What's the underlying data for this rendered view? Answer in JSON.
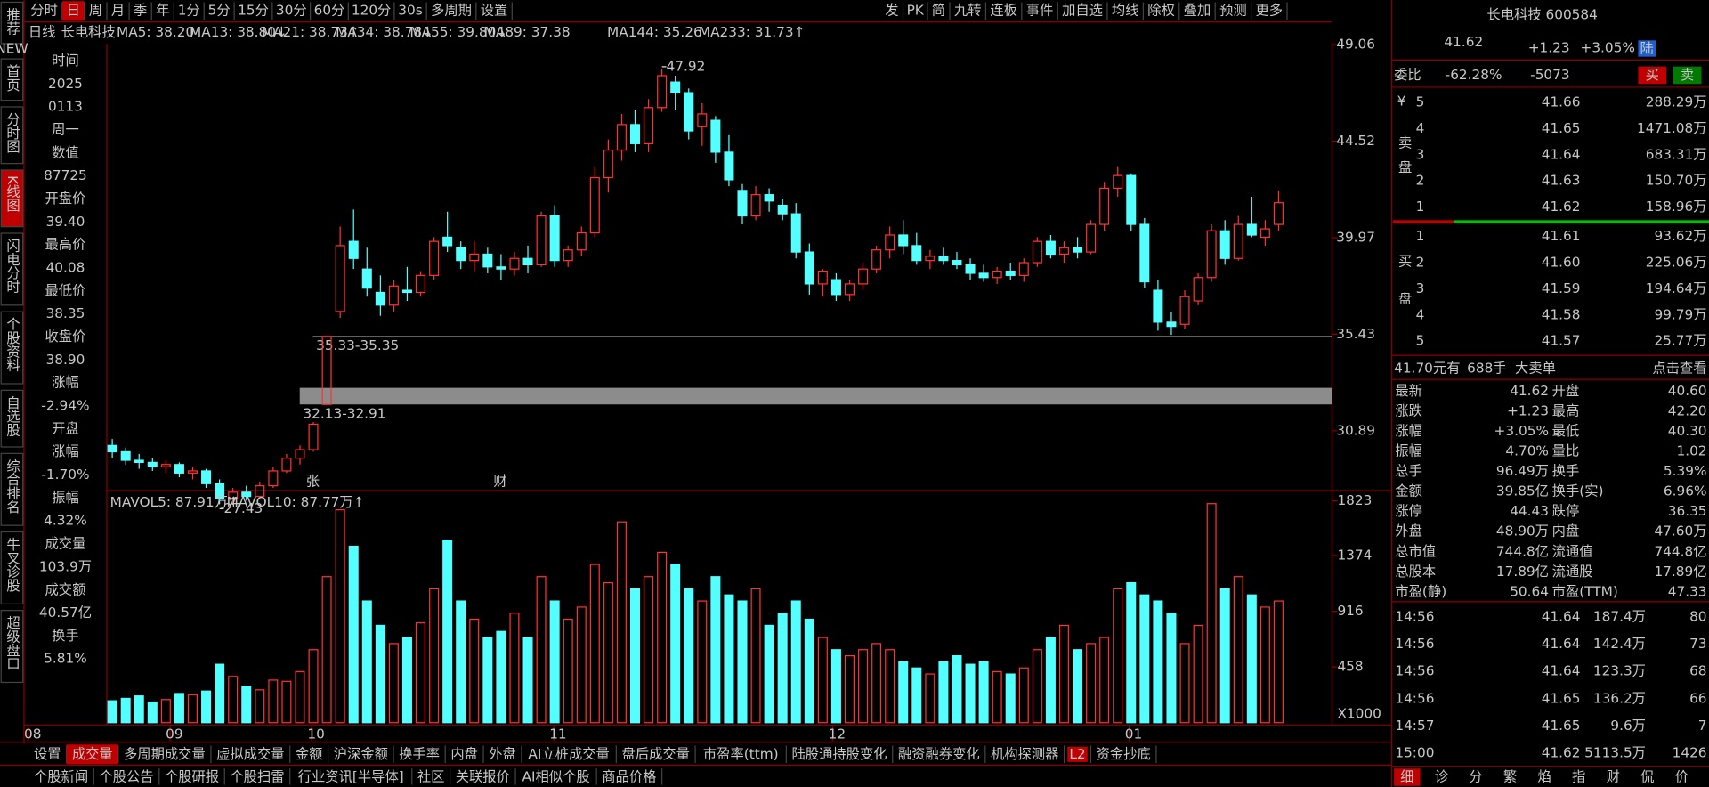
{
  "top_toolbar": [
    "分时",
    "日",
    "周",
    "月",
    "季",
    "年",
    "1分",
    "5分",
    "15分",
    "30分",
    "60分",
    "120分",
    "30s",
    "多周期",
    "设置"
  ],
  "top_toolbar_selected": "日",
  "top_right_toolbar": [
    "发",
    "PK",
    "简",
    "九转",
    "连板",
    "事件",
    "加自选",
    "均线",
    "除权",
    "叠加",
    "预测",
    "更多"
  ],
  "left_sidebar": [
    "推荐",
    "首页",
    "分时图",
    "K线图",
    "闪电分时",
    "个股资料",
    "自选股",
    "综合排名",
    "牛叉诊股",
    "超级盘口"
  ],
  "left_sidebar_selected": "K线图",
  "left_badge": "NEW",
  "chart_header": {
    "period": "日线",
    "name": "长电科技",
    "ma": [
      {
        "label": "MA5: 38.20",
        "color": "#ffffff"
      },
      {
        "label": "MA13: 38.80↓",
        "color": "#ffff00"
      },
      {
        "label": "MA21: 38.73↑",
        "color": "#ff80ff"
      },
      {
        "label": "MA34: 38.78↓",
        "color": "#00e600"
      },
      {
        "label": "MA55: 39.80↓",
        "color": "#33ccff"
      },
      {
        "label": "MA89: 37.38",
        "color": "#f0f0f0"
      },
      {
        "label": "MA144: 35.26",
        "color": "#3f9f9f"
      },
      {
        "label": "MA233: 31.73↑",
        "color": "#ff3b3b"
      }
    ]
  },
  "info_column": [
    {
      "text": "时间",
      "color": "#c8c8c8"
    },
    {
      "text": "2025",
      "color": "#e6e6e6"
    },
    {
      "text": "0113",
      "color": "#e6e6e6"
    },
    {
      "text": "周一",
      "color": "#e6e6e6"
    },
    {
      "text": "数值",
      "color": "#c8c8c8"
    },
    {
      "text": "87725",
      "color": "#ff3b3b"
    },
    {
      "text": "开盘价",
      "color": "#c8c8c8"
    },
    {
      "text": "39.40",
      "color": "#00e600"
    },
    {
      "text": "最高价",
      "color": "#c8c8c8"
    },
    {
      "text": "40.08",
      "color": "#e6e6e6"
    },
    {
      "text": "最低价",
      "color": "#c8c8c8"
    },
    {
      "text": "38.35",
      "color": "#00e600"
    },
    {
      "text": "收盘价",
      "color": "#c8c8c8"
    },
    {
      "text": "38.90",
      "color": "#00e600"
    },
    {
      "text": "涨幅",
      "color": "#c8c8c8"
    },
    {
      "text": "-2.94%",
      "color": "#00e600"
    },
    {
      "text": "开盘",
      "color": "#c8c8c8"
    },
    {
      "text": "涨幅",
      "color": "#c8c8c8"
    },
    {
      "text": "-1.70%",
      "color": "#00e600"
    },
    {
      "text": "振幅",
      "color": "#c8c8c8"
    },
    {
      "text": "4.32%",
      "color": "#33ccff"
    },
    {
      "text": "成交量",
      "color": "#c8c8c8"
    },
    {
      "text": "103.9万",
      "color": "#33ccff"
    },
    {
      "text": "成交额",
      "color": "#c8c8c8"
    },
    {
      "text": "40.57亿",
      "color": "#33ccff"
    },
    {
      "text": "换手",
      "color": "#c8c8c8"
    },
    {
      "text": "5.81%",
      "color": "#33ccff"
    }
  ],
  "chart_data": {
    "type": "candlestick",
    "candles": [
      [
        30.2,
        30.5,
        29.6,
        29.9
      ],
      [
        29.9,
        30.1,
        29.3,
        29.5
      ],
      [
        29.5,
        29.8,
        29.1,
        29.4
      ],
      [
        29.4,
        29.6,
        29.0,
        29.2
      ],
      [
        29.2,
        29.5,
        28.9,
        29.3
      ],
      [
        29.3,
        29.4,
        28.7,
        28.9
      ],
      [
        28.9,
        29.2,
        28.6,
        29.0
      ],
      [
        29.0,
        29.1,
        28.2,
        28.4
      ],
      [
        28.4,
        28.6,
        27.43,
        27.7
      ],
      [
        27.7,
        28.2,
        27.5,
        28.0
      ],
      [
        28.0,
        28.3,
        27.6,
        27.8
      ],
      [
        27.8,
        28.5,
        27.7,
        28.3
      ],
      [
        28.3,
        29.2,
        28.2,
        29.0
      ],
      [
        29.0,
        29.8,
        28.9,
        29.6
      ],
      [
        29.6,
        30.2,
        29.3,
        30.0
      ],
      [
        30.0,
        31.3,
        29.9,
        31.2
      ],
      [
        32.13,
        35.33,
        32.13,
        35.33
      ],
      [
        36.5,
        40.5,
        36.2,
        39.6
      ],
      [
        39.8,
        41.3,
        38.5,
        39.0
      ],
      [
        38.5,
        39.5,
        37.2,
        37.6
      ],
      [
        37.4,
        38.2,
        36.3,
        36.8
      ],
      [
        36.8,
        38.0,
        36.5,
        37.7
      ],
      [
        37.5,
        38.6,
        37.0,
        37.4
      ],
      [
        37.4,
        38.4,
        37.2,
        38.2
      ],
      [
        38.2,
        40.0,
        38.0,
        39.8
      ],
      [
        40.0,
        41.2,
        39.3,
        39.6
      ],
      [
        39.5,
        39.8,
        38.5,
        38.9
      ],
      [
        38.9,
        39.8,
        38.4,
        39.2
      ],
      [
        39.2,
        39.5,
        38.3,
        38.6
      ],
      [
        38.6,
        39.2,
        38.0,
        38.5
      ],
      [
        38.5,
        39.3,
        38.2,
        39.0
      ],
      [
        39.0,
        39.6,
        38.3,
        38.7
      ],
      [
        38.7,
        41.2,
        38.6,
        41.0
      ],
      [
        41.0,
        41.5,
        38.6,
        38.9
      ],
      [
        38.9,
        39.6,
        38.6,
        39.4
      ],
      [
        39.4,
        40.5,
        39.1,
        40.2
      ],
      [
        40.2,
        43.3,
        40.0,
        42.8
      ],
      [
        42.8,
        44.6,
        42.1,
        44.1
      ],
      [
        44.1,
        45.8,
        43.6,
        45.3
      ],
      [
        45.3,
        46.0,
        44.0,
        44.4
      ],
      [
        44.4,
        46.5,
        44.0,
        46.1
      ],
      [
        46.1,
        47.92,
        45.9,
        47.6
      ],
      [
        47.3,
        47.6,
        46.0,
        46.8
      ],
      [
        46.8,
        47.0,
        44.6,
        45.0
      ],
      [
        45.2,
        46.3,
        44.3,
        45.8
      ],
      [
        45.5,
        45.7,
        43.5,
        44.0
      ],
      [
        44.0,
        44.8,
        42.4,
        42.7
      ],
      [
        42.2,
        42.5,
        40.6,
        41.0
      ],
      [
        41.0,
        42.4,
        40.8,
        42.0
      ],
      [
        42.0,
        42.3,
        41.2,
        41.7
      ],
      [
        41.5,
        41.8,
        40.8,
        41.1
      ],
      [
        41.1,
        41.6,
        39.0,
        39.3
      ],
      [
        39.3,
        39.7,
        37.3,
        37.8
      ],
      [
        37.8,
        38.5,
        37.2,
        38.4
      ],
      [
        38.0,
        38.3,
        37.0,
        37.3
      ],
      [
        37.3,
        38.0,
        37.0,
        37.8
      ],
      [
        37.8,
        38.8,
        37.5,
        38.5
      ],
      [
        38.5,
        39.6,
        38.3,
        39.4
      ],
      [
        39.4,
        40.5,
        39.0,
        40.1
      ],
      [
        40.1,
        40.8,
        39.2,
        39.6
      ],
      [
        39.6,
        40.2,
        38.7,
        38.9
      ],
      [
        38.9,
        39.4,
        38.5,
        39.1
      ],
      [
        39.1,
        39.5,
        38.7,
        38.9
      ],
      [
        38.9,
        39.3,
        38.5,
        38.7
      ],
      [
        38.7,
        39.0,
        38.0,
        38.3
      ],
      [
        38.3,
        38.7,
        37.9,
        38.1
      ],
      [
        38.1,
        38.6,
        37.8,
        38.4
      ],
      [
        38.4,
        38.8,
        38.0,
        38.2
      ],
      [
        38.2,
        39.0,
        37.9,
        38.8
      ],
      [
        38.8,
        40.0,
        38.6,
        39.8
      ],
      [
        39.8,
        40.1,
        39.0,
        39.2
      ],
      [
        39.2,
        39.8,
        38.8,
        39.5
      ],
      [
        39.5,
        40.0,
        39.0,
        39.3
      ],
      [
        39.3,
        40.8,
        39.2,
        40.6
      ],
      [
        40.6,
        42.6,
        40.3,
        42.3
      ],
      [
        42.3,
        43.3,
        41.9,
        42.9
      ],
      [
        42.9,
        43.0,
        40.3,
        40.6
      ],
      [
        40.6,
        40.9,
        37.6,
        37.9
      ],
      [
        37.5,
        38.0,
        35.6,
        36.0
      ],
      [
        36.0,
        36.5,
        35.4,
        35.8
      ],
      [
        35.9,
        37.5,
        35.7,
        37.2
      ],
      [
        37.0,
        38.3,
        36.8,
        38.1
      ],
      [
        38.1,
        40.6,
        37.9,
        40.3
      ],
      [
        40.3,
        40.8,
        38.7,
        39.0
      ],
      [
        39.0,
        41.0,
        38.9,
        40.6
      ],
      [
        40.6,
        41.9,
        40.0,
        40.1
      ],
      [
        40.0,
        40.8,
        39.6,
        40.39
      ],
      [
        40.6,
        42.2,
        40.3,
        41.62
      ]
    ],
    "up_color": "#ff3232",
    "down_color": "#54ffff",
    "ylim": [
      28.18,
      49.57
    ],
    "yticks": [
      30.89,
      35.43,
      39.97,
      44.52,
      49.06
    ],
    "high_label": "47.92",
    "low_label": "27.43",
    "level_line": {
      "low": 35.33,
      "high": 35.35,
      "label": "35.33-35.35"
    },
    "zone": {
      "low": 32.13,
      "high": 32.91,
      "label": "32.13-32.91"
    },
    "event_markers": [
      "张",
      "财"
    ],
    "months": [
      "08",
      "09",
      "10",
      "11",
      "12",
      "01"
    ]
  },
  "volume": {
    "header": [
      {
        "label": "MAVOL5: 87.91万↑",
        "color": "#ffffff"
      },
      {
        "label": "MAVOL10: 87.77万↑",
        "color": "#ffff00"
      }
    ],
    "values": [
      180,
      200,
      220,
      170,
      190,
      240,
      230,
      260,
      480,
      380,
      300,
      270,
      350,
      340,
      420,
      600,
      1200,
      1750,
      1450,
      1000,
      800,
      650,
      700,
      820,
      1100,
      1500,
      1000,
      850,
      700,
      750,
      900,
      700,
      1200,
      1000,
      850,
      950,
      1300,
      1150,
      1650,
      1100,
      1200,
      1400,
      1300,
      1100,
      1000,
      1200,
      1050,
      1000,
      1100,
      800,
      900,
      1000,
      850,
      700,
      600,
      550,
      600,
      650,
      600,
      500,
      450,
      400,
      500,
      550,
      480,
      500,
      420,
      400,
      450,
      600,
      700,
      800,
      600,
      650,
      700,
      1100,
      1150,
      1050,
      1000,
      900,
      650,
      800,
      1800,
      1100,
      1200,
      1050,
      950,
      1000
    ],
    "ylim": [
      0,
      1890
    ],
    "yticks": [
      458,
      916,
      1374,
      1823
    ],
    "unit_label": "X1000"
  },
  "bottom_tabs": [
    "设置",
    "成交量",
    "多周期成交量",
    "虚拟成交量",
    "金额",
    "沪深金额",
    "换手率",
    "内盘",
    "外盘",
    "AI立桩成交量",
    "盘后成交量",
    "市盈率(ttm)",
    "陆股通持股变化",
    "融资融券变化",
    "机构探测器",
    "L2",
    "资金抄底"
  ],
  "bottom_tab_selected": "成交量",
  "bottom_links": [
    "个股新闻",
    "个股公告",
    "个股研报",
    "个股扫雷",
    "行业资讯[半导体]",
    "社区",
    "关联报价",
    "AI相似个股",
    "商品价格"
  ],
  "quote": {
    "title": "长电科技 600584",
    "price": "41.62",
    "change": "+1.23",
    "pct": "+3.05%",
    "badge": "陆",
    "weibi_label": "委比",
    "weibi_pct": "-62.28%",
    "weibi_diff": "-5073",
    "buy_btn": "买",
    "sell_btn": "卖",
    "currency": "¥",
    "sell_side": "卖盘",
    "buy_side": "买盘",
    "asks": [
      {
        "level": "5",
        "price": "41.66",
        "volume": "288.29万"
      },
      {
        "level": "4",
        "price": "41.65",
        "volume": "1471.08万"
      },
      {
        "level": "3",
        "price": "41.64",
        "volume": "683.31万"
      },
      {
        "level": "2",
        "price": "41.63",
        "volume": "150.70万"
      },
      {
        "level": "1",
        "price": "41.62",
        "volume": "158.96万"
      }
    ],
    "bids": [
      {
        "level": "1",
        "price": "41.61",
        "volume": "93.62万"
      },
      {
        "level": "2",
        "price": "41.60",
        "volume": "225.06万"
      },
      {
        "level": "3",
        "price": "41.59",
        "volume": "194.64万"
      },
      {
        "level": "4",
        "price": "41.58",
        "volume": "99.79万"
      },
      {
        "level": "5",
        "price": "41.57",
        "volume": "25.77万"
      }
    ],
    "big_order": [
      "41.70元有",
      "688手",
      "大卖单",
      "点击查看"
    ],
    "stats": [
      {
        "label": "最新",
        "value": "41.62",
        "color": "#ff3b3b"
      },
      {
        "label": "开盘",
        "value": "40.60",
        "color": "#ff3b3b"
      },
      {
        "label": "涨跌",
        "value": "+1.23",
        "color": "#ff3b3b"
      },
      {
        "label": "最高",
        "value": "42.20",
        "color": "#ff3b3b"
      },
      {
        "label": "涨幅",
        "value": "+3.05%",
        "color": "#ff3b3b"
      },
      {
        "label": "最低",
        "value": "40.30",
        "color": "#00e600"
      },
      {
        "label": "振幅",
        "value": "4.70%",
        "color": "#e6e6e6"
      },
      {
        "label": "量比",
        "value": "1.02",
        "color": "#ff3b3b"
      },
      {
        "label": "总手",
        "value": "96.49万",
        "color": "#33ccff"
      },
      {
        "label": "换手",
        "value": "5.39%",
        "color": "#33ccff"
      },
      {
        "label": "金额",
        "value": "39.85亿",
        "color": "#33ccff"
      },
      {
        "label": "换手(实)",
        "value": "6.96%",
        "color": "#33ccff"
      },
      {
        "label": "涨停",
        "value": "44.43",
        "color": "#ff3b3b"
      },
      {
        "label": "跌停",
        "value": "36.35",
        "color": "#00e600"
      },
      {
        "label": "外盘",
        "value": "48.90万",
        "color": "#ff3b3b"
      },
      {
        "label": "内盘",
        "value": "47.60万",
        "color": "#00e600"
      },
      {
        "label": "总市值",
        "value": "744.8亿",
        "color": "#33ccff"
      },
      {
        "label": "流通值",
        "value": "744.8亿",
        "color": "#33ccff"
      },
      {
        "label": "总股本",
        "value": "17.89亿",
        "color": "#33ccff"
      },
      {
        "label": "流通股",
        "value": "17.89亿",
        "color": "#33ccff"
      },
      {
        "label": "市盈(静)",
        "value": "50.64",
        "color": "#e6e6e6"
      },
      {
        "label": "市盈(TTM)",
        "value": "47.33",
        "color": "#e6e6e6"
      }
    ],
    "trades": [
      {
        "time": "14:56",
        "price": "41.64",
        "volume": "187.4万",
        "count": "80"
      },
      {
        "time": "14:56",
        "price": "41.64",
        "volume": "142.4万",
        "count": "73"
      },
      {
        "time": "14:56",
        "price": "41.64",
        "volume": "123.3万",
        "count": "68"
      },
      {
        "time": "14:56",
        "price": "41.65",
        "volume": "136.2万",
        "count": "66"
      },
      {
        "time": "14:57",
        "price": "41.65",
        "volume": "9.6万",
        "count": "7"
      },
      {
        "time": "15:00",
        "price": "41.62",
        "volume": "5113.5万",
        "count": "1426"
      }
    ],
    "tabs": [
      "细",
      "诊",
      "分",
      "繁",
      "焰",
      "指",
      "财",
      "侃",
      "价"
    ]
  }
}
